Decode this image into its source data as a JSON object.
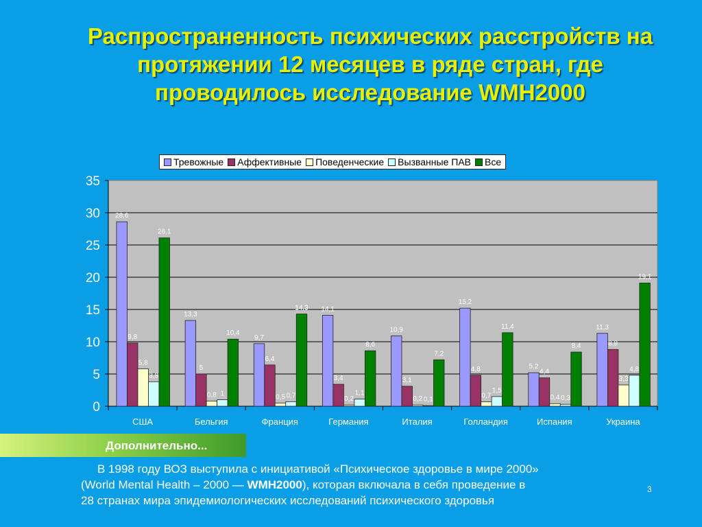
{
  "slide": {
    "title": "Распространенность психических расстройств на протяжении 12 месяцев в ряде стран, где проводилось исследование WMH2000",
    "more_label": "Дополнительно...",
    "note": {
      "line1": "В 1998 году ВОЗ выступила с инициативой «Психическое здоровье в мире 2000»",
      "line2_pre": "(World Mental Health – 2000 — ",
      "line2_bold": "WMH2000",
      "line2_post": "), которая включала в себя проведение в",
      "line3": "28 странах мира эпидемиологических исследований психического здоровья"
    },
    "page_number": "3",
    "colors": {
      "background": "#0a9ee6",
      "title": "#e8f000",
      "plot_area": "#c0c0c0"
    }
  },
  "chart_data": {
    "type": "bar",
    "categories": [
      "США",
      "Бельгия",
      "Франция",
      "Германия",
      "Италия",
      "Голландия",
      "Испания",
      "Украина"
    ],
    "series": [
      {
        "name": "Тревожные",
        "color": "#9999ff",
        "values": [
          28.6,
          13.3,
          9.7,
          14.1,
          10.9,
          15.2,
          5.2,
          11.3
        ],
        "labels": [
          "28,6",
          "13,3",
          "9,7",
          "14,1",
          "10,9",
          "15,2",
          "5,2",
          "11,3"
        ]
      },
      {
        "name": "Аффективные",
        "color": "#993366",
        "values": [
          9.8,
          5,
          6.4,
          3.4,
          3.1,
          4.8,
          4.4,
          8.8
        ],
        "labels": [
          "9,8",
          "5",
          "6,4",
          "3,4",
          "3,1",
          "4,8",
          "4,4",
          "8,8"
        ]
      },
      {
        "name": "Поведенческие",
        "color": "#ffffcc",
        "values": [
          5.8,
          0.8,
          0.5,
          0.2,
          0.2,
          0.7,
          0.4,
          3.3
        ],
        "labels": [
          "5,8",
          "0,8",
          "0,5",
          "0,2",
          "0,2",
          "0,7",
          "0,4",
          "3,3"
        ]
      },
      {
        "name": "Вызванные ПАВ",
        "color": "#ccffff",
        "values": [
          3.8,
          1,
          0.7,
          1.1,
          0.1,
          1.5,
          0.3,
          4.8
        ],
        "labels": [
          "3,8",
          "1",
          "0,7",
          "1,1",
          "0,1",
          "1,5",
          "0,3",
          "4,8"
        ]
      },
      {
        "name": "Все",
        "color": "#008000",
        "values": [
          26.1,
          10.4,
          14.3,
          8.6,
          7.2,
          11.4,
          8.4,
          19.1
        ],
        "labels": [
          "26,1",
          "10,4",
          "14,3",
          "8,6",
          "7,2",
          "11,4",
          "8,4",
          "19,1"
        ]
      }
    ],
    "y_ticks": [
      "0",
      "5",
      "10",
      "15",
      "20",
      "25",
      "30",
      "35"
    ],
    "ylim": [
      0,
      35
    ],
    "grid": true,
    "legend_position": "top"
  }
}
